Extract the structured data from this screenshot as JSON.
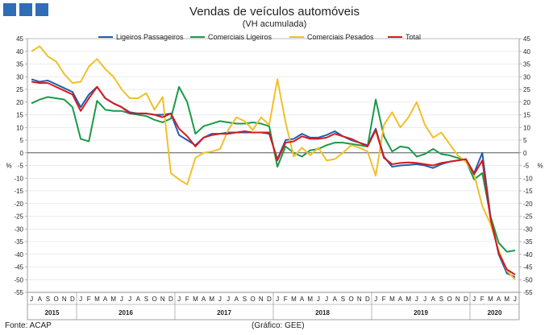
{
  "header": {
    "title": "Vendas de veículos automóveis",
    "subtitle": "(VH acumulada)"
  },
  "footer": {
    "source": "Fonte: ACAP",
    "credit": "(Gráfico: GEE)"
  },
  "colors": {
    "logo": "#2f6db5",
    "ligeiros_passageiros": "#1f5fb0",
    "comerciais_ligeiros": "#1a9a4a",
    "comerciais_pesados": "#f0c02a",
    "total": "#d7191c"
  },
  "chart_data": {
    "type": "line",
    "ylim": [
      -55,
      45
    ],
    "y_ticks": [
      45,
      40,
      35,
      30,
      25,
      20,
      15,
      10,
      5,
      0,
      -5,
      -10,
      -15,
      -20,
      -25,
      -30,
      -35,
      -40,
      -45,
      -50,
      -55
    ],
    "ylabel": "%",
    "ylabel_right": "%",
    "grid": true,
    "legend_position": "top",
    "x": [
      "J",
      "A",
      "S",
      "O",
      "N",
      "D",
      "J",
      "F",
      "M",
      "A",
      "M",
      "J",
      "J",
      "A",
      "S",
      "O",
      "N",
      "D",
      "J",
      "F",
      "M",
      "A",
      "M",
      "J",
      "J",
      "A",
      "S",
      "O",
      "N",
      "D",
      "J",
      "F",
      "M",
      "A",
      "M",
      "J",
      "J",
      "A",
      "S",
      "O",
      "N",
      "D",
      "J",
      "F",
      "M",
      "A",
      "M",
      "J",
      "J",
      "A",
      "S",
      "O",
      "N",
      "D",
      "J",
      "F",
      "M",
      "A",
      "M",
      "J"
    ],
    "years": [
      {
        "label": "2015",
        "start": 0,
        "end": 5
      },
      {
        "label": "2016",
        "start": 6,
        "end": 17
      },
      {
        "label": "2017",
        "start": 18,
        "end": 29
      },
      {
        "label": "2018",
        "start": 30,
        "end": 41
      },
      {
        "label": "2019",
        "start": 42,
        "end": 53
      },
      {
        "label": "2020",
        "start": 54,
        "end": 59
      }
    ],
    "series": [
      {
        "name": "Ligeiros Passageiros",
        "color": "#1f5fb0",
        "values": [
          29,
          28,
          28.5,
          27,
          25.5,
          24,
          18,
          23,
          26,
          21.5,
          19.5,
          18,
          16,
          15.5,
          15.5,
          15,
          15,
          15.5,
          7,
          5,
          3,
          6,
          7.5,
          7.5,
          8,
          8,
          8,
          8,
          8,
          7.5,
          -2.5,
          5,
          5.5,
          7.5,
          6,
          6,
          7,
          8.5,
          6.5,
          5,
          4,
          3,
          9.5,
          -1.5,
          -5.5,
          -5,
          -4.8,
          -4.5,
          -5,
          -6,
          -4.5,
          -3.5,
          -3,
          -2.5,
          -8,
          0,
          -25,
          -40,
          -47.5,
          -49
        ]
      },
      {
        "name": "Comerciais Ligeiros",
        "color": "#1a9a4a",
        "values": [
          19.5,
          21,
          22,
          21.5,
          21,
          18,
          5.5,
          4.5,
          20.5,
          17,
          16.5,
          16.5,
          15.5,
          15,
          14.5,
          13,
          12,
          13.5,
          26,
          20,
          7.5,
          10.5,
          11.5,
          12.5,
          12,
          11.5,
          11.5,
          12,
          11.5,
          10.5,
          -5.5,
          2.5,
          0,
          -1.5,
          1,
          1.5,
          3,
          4,
          4,
          3.5,
          3,
          2.5,
          21,
          6.5,
          0.5,
          2.5,
          2,
          -1.5,
          -0.5,
          1.5,
          -0.5,
          -1,
          -2,
          -3,
          -10.5,
          -8,
          -25,
          -35.5,
          -39,
          -38.5
        ]
      },
      {
        "name": "Comerciais Pesados",
        "color": "#f0c02a",
        "values": [
          40,
          42,
          38,
          36,
          31,
          27.5,
          28,
          34,
          37,
          33,
          30,
          25,
          21.5,
          21.5,
          23.5,
          17,
          22,
          -8,
          -10.5,
          -12.5,
          -2,
          0,
          0.5,
          1.5,
          9,
          14,
          12.5,
          9,
          14,
          11,
          29,
          12,
          -1.5,
          2,
          -1,
          2,
          -3,
          -2.5,
          0,
          3,
          2,
          0.5,
          -9,
          11,
          16,
          10,
          14,
          20,
          11,
          6,
          8,
          3.5,
          -1,
          -3.5,
          -8.5,
          -21,
          -28,
          -38.5,
          -46.5,
          -50
        ]
      },
      {
        "name": "Total",
        "color": "#d7191c",
        "values": [
          28,
          27.5,
          27.5,
          26,
          24.5,
          23,
          16.5,
          21.5,
          26,
          21.5,
          19.5,
          18,
          15.5,
          15.5,
          15.5,
          15,
          14,
          15.5,
          9.5,
          6.5,
          2.5,
          6,
          7,
          7.5,
          7.5,
          8,
          8.5,
          8,
          8,
          8,
          -3,
          4,
          4.5,
          6.5,
          5.5,
          5.5,
          6,
          7.5,
          6.5,
          5.5,
          4,
          2.5,
          9,
          -2,
          -4.5,
          -4,
          -3.8,
          -4,
          -4.5,
          -5,
          -4,
          -3.5,
          -3,
          -2.5,
          -8.5,
          -3,
          -26,
          -39.5,
          -46,
          -48
        ]
      }
    ]
  }
}
